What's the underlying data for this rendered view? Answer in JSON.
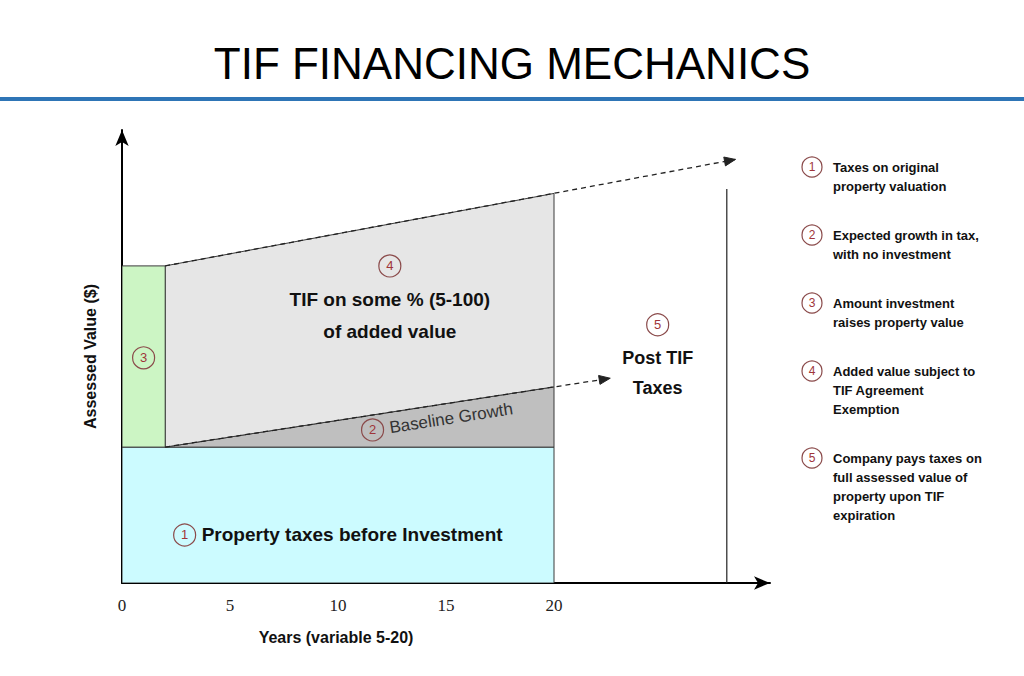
{
  "chart_data": {
    "type": "area",
    "title": "TIF FINANCING MECHANICS",
    "x_label": "Years (variable 5-20)",
    "y_label": "Assessed Value ($)",
    "xlim": [
      0,
      30
    ],
    "xticks": [
      0,
      5,
      10,
      15,
      20
    ],
    "ylim": [
      0,
      100
    ],
    "yticks": [],
    "tick_labels": "x",
    "grid": false,
    "regions": [
      {
        "color": "#ccfbff",
        "x": [
          0,
          20
        ],
        "lower": [
          0,
          0
        ],
        "upper": [
          30,
          30
        ]
      },
      {
        "color": "#bfbfbf",
        "x": [
          2,
          20
        ],
        "lower": [
          30,
          30
        ],
        "upper": [
          30,
          43.3
        ]
      },
      {
        "color": "#e6e6e6",
        "x": [
          2,
          20
        ],
        "lower": [
          30,
          43.3
        ],
        "upper": [
          70,
          86
        ]
      },
      {
        "color": "#ccf5c4",
        "x": [
          0,
          2
        ],
        "lower": [
          30,
          30
        ],
        "upper": [
          70,
          70
        ]
      }
    ],
    "lines": [
      {
        "x": [
          2,
          28.4
        ],
        "y": [
          70,
          93.5
        ],
        "line_style": "dashed",
        "marker": "arrow"
      },
      {
        "x": [
          2,
          22.6
        ],
        "y": [
          30,
          45.2
        ],
        "line_style": "dashed",
        "marker": "arrow"
      },
      {
        "x": [
          28,
          28
        ],
        "y": [
          0,
          87
        ],
        "line_style": "solid",
        "marker": "none"
      }
    ],
    "annotations": [
      {
        "number": 1,
        "text": "Property taxes before Investment",
        "x": 2.9,
        "y": 10.6
      },
      {
        "number": 2,
        "text": "Baseline Growth",
        "x": 11.6,
        "y": 33.8
      },
      {
        "number": 3,
        "x": 1.0,
        "y": 49.7
      },
      {
        "number": 4,
        "text": "TIF on some % (5-100)\nof added value",
        "x": 12.4,
        "y": 70
      },
      {
        "number": 5,
        "text": "Post TIF\nTaxes",
        "x": 24.8,
        "y": 57
      }
    ],
    "key": [
      {
        "number": 1,
        "text": "Taxes on original\nproperty valuation"
      },
      {
        "number": 2,
        "text": "Expected growth in tax,\nwith no investment"
      },
      {
        "number": 3,
        "text": "Amount investment\nraises property value"
      },
      {
        "number": 4,
        "text": "Added value subject to\nTIF Agreement\nExemption"
      },
      {
        "number": 5,
        "text": "Company pays taxes on\nfull assessed value of\nproperty upon TIF\nexpiration"
      }
    ]
  }
}
